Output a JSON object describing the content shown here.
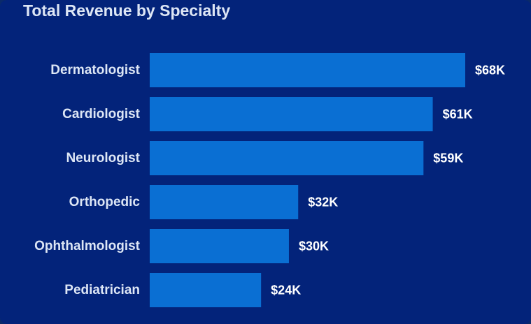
{
  "chart_data": {
    "type": "bar",
    "orientation": "horizontal",
    "title": "Total Revenue by Specialty",
    "categories": [
      "Dermatologist",
      "Cardiologist",
      "Neurologist",
      "Orthopedic",
      "Ophthalmologist",
      "Pediatrician"
    ],
    "values": [
      68,
      61,
      59,
      32,
      30,
      24
    ],
    "data_labels": [
      "$68K",
      "$61K",
      "$59K",
      "$32K",
      "$30K",
      "$24K"
    ],
    "value_unit": "$K",
    "xlim": [
      0,
      68
    ],
    "grid": false,
    "legend": "none"
  },
  "colors": {
    "background": "#03237a",
    "bar": "#0a6fd3",
    "text": "#dde6f5"
  }
}
